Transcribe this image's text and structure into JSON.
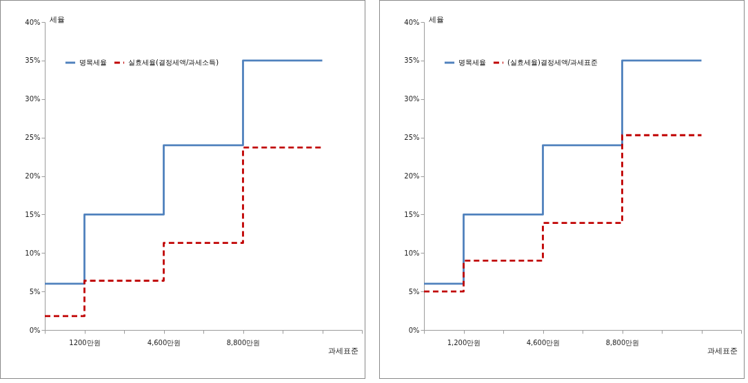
{
  "chart_data": [
    {
      "type": "step",
      "xlabel": "과세표준",
      "ylabel": "세율",
      "categories": [
        null,
        "1200만원",
        null,
        "4,600만원",
        null,
        "8,800만원",
        null,
        null,
        null
      ],
      "ylim": [
        0,
        40
      ],
      "yticks": [
        {
          "value": 0,
          "label": "0%"
        },
        {
          "value": 5,
          "label": "5%"
        },
        {
          "value": 10,
          "label": "10%"
        },
        {
          "value": 15,
          "label": "15%"
        },
        {
          "value": 20,
          "label": "20%"
        },
        {
          "value": 25,
          "label": "25%"
        },
        {
          "value": 30,
          "label": "30%"
        },
        {
          "value": 35,
          "label": "35%"
        },
        {
          "value": 40,
          "label": "40%"
        }
      ],
      "grid": false,
      "legend": "top left",
      "series": [
        {
          "name": "명목세율",
          "color": "#4f81bd",
          "line_style": "solid",
          "values": [
            6,
            15,
            15,
            24,
            24,
            35,
            35,
            35,
            null
          ]
        },
        {
          "name": "실효세율(결정세액/과세소득)",
          "color": "#c00000",
          "line_style": "dashed",
          "values": [
            1.8,
            6.4,
            6.4,
            11.3,
            11.3,
            23.7,
            23.7,
            23.7,
            null
          ]
        }
      ]
    },
    {
      "type": "step",
      "xlabel": "과세표준",
      "ylabel": "세율",
      "categories": [
        null,
        "1,200만원",
        null,
        "4,600만원",
        null,
        "8,800만원",
        null,
        null,
        null
      ],
      "ylim": [
        0,
        40
      ],
      "yticks": [
        {
          "value": 0,
          "label": "0%"
        },
        {
          "value": 5,
          "label": "5%"
        },
        {
          "value": 10,
          "label": "10%"
        },
        {
          "value": 15,
          "label": "15%"
        },
        {
          "value": 20,
          "label": "20%"
        },
        {
          "value": 25,
          "label": "25%"
        },
        {
          "value": 30,
          "label": "30%"
        },
        {
          "value": 35,
          "label": "35%"
        },
        {
          "value": 40,
          "label": "40%"
        }
      ],
      "grid": false,
      "legend": "top left",
      "series": [
        {
          "name": "명목세율",
          "color": "#4f81bd",
          "line_style": "solid",
          "values": [
            6,
            15,
            15,
            24,
            24,
            35,
            35,
            35,
            null
          ]
        },
        {
          "name": "(실효세율)결정세액/과세표준",
          "color": "#c00000",
          "line_style": "dashed",
          "values": [
            5,
            9,
            9,
            13.9,
            13.9,
            25.3,
            25.3,
            25.3,
            null
          ]
        }
      ]
    }
  ]
}
